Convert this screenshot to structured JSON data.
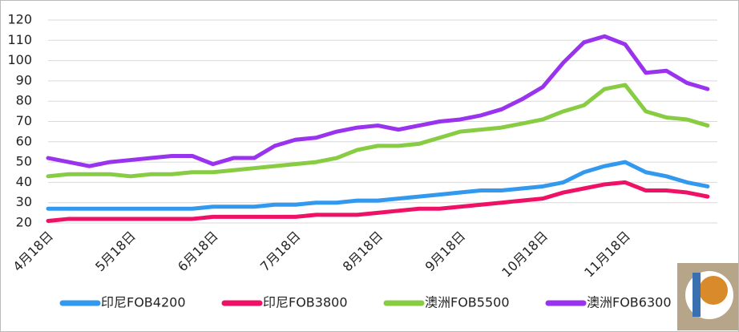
{
  "chart_data": {
    "type": "line",
    "categories": [
      "4月18日",
      null,
      null,
      null,
      "5月18日",
      null,
      null,
      null,
      "6月18日",
      null,
      null,
      null,
      "7月18日",
      null,
      null,
      null,
      "8月18日",
      null,
      null,
      null,
      "9月18日",
      null,
      null,
      null,
      "10月18日",
      null,
      null,
      null,
      "11月18日",
      null,
      null,
      null,
      null
    ],
    "series": [
      {
        "name": "印尼FOB4200",
        "color": "#3399ee",
        "values": [
          27,
          27,
          27,
          27,
          27,
          27,
          27,
          27,
          28,
          28,
          28,
          29,
          29,
          30,
          30,
          31,
          31,
          32,
          33,
          34,
          35,
          36,
          36,
          37,
          38,
          40,
          45,
          48,
          50,
          45,
          43,
          40,
          38
        ]
      },
      {
        "name": "印尼FOB3800",
        "color": "#ee1166",
        "values": [
          21,
          22,
          22,
          22,
          22,
          22,
          22,
          22,
          23,
          23,
          23,
          23,
          23,
          24,
          24,
          24,
          25,
          26,
          27,
          27,
          28,
          29,
          30,
          31,
          32,
          35,
          37,
          39,
          40,
          36,
          36,
          35,
          33
        ]
      },
      {
        "name": "澳洲FOB5500",
        "color": "#88cc44",
        "values": [
          43,
          44,
          44,
          44,
          43,
          44,
          44,
          45,
          45,
          46,
          47,
          48,
          49,
          50,
          52,
          56,
          58,
          58,
          59,
          62,
          65,
          66,
          67,
          69,
          71,
          75,
          78,
          86,
          88,
          75,
          72,
          71,
          68
        ]
      },
      {
        "name": "澳洲FOB6300",
        "color": "#9933ee",
        "values": [
          52,
          50,
          48,
          50,
          51,
          52,
          53,
          53,
          49,
          52,
          52,
          58,
          61,
          62,
          65,
          67,
          68,
          66,
          68,
          70,
          71,
          73,
          76,
          81,
          87,
          99,
          109,
          112,
          108,
          94,
          95,
          89,
          86
        ]
      }
    ],
    "ylim": [
      20,
      120
    ],
    "yticks": [
      20,
      30,
      40,
      50,
      60,
      70,
      80,
      90,
      100,
      110,
      120
    ],
    "grid": true
  }
}
